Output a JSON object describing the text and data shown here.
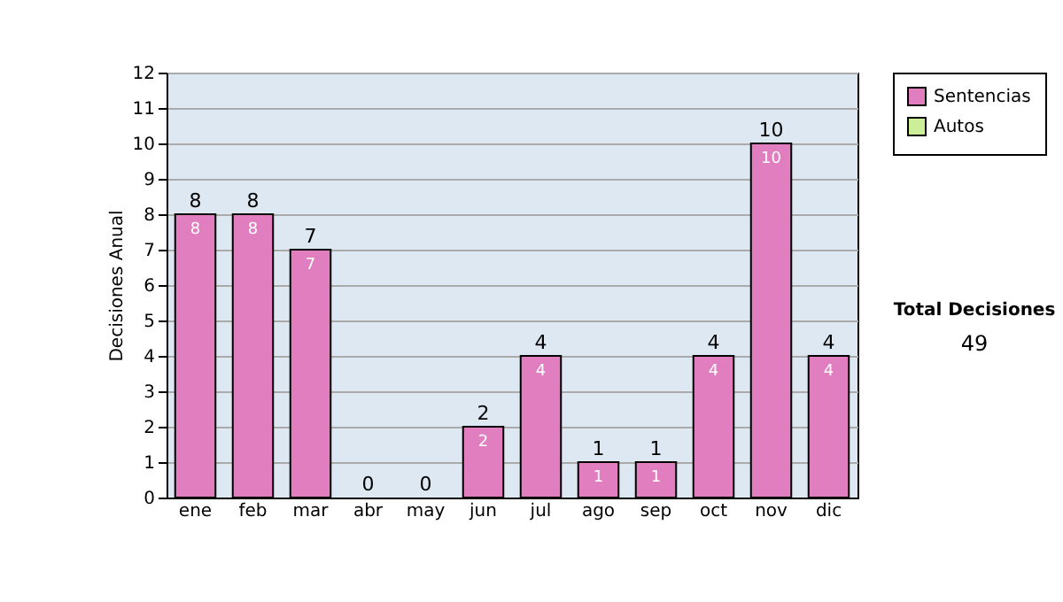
{
  "chart_data": {
    "type": "bar",
    "stacked": true,
    "ylabel": "Decisiones Anual",
    "categories": [
      "ene",
      "feb",
      "mar",
      "abr",
      "may",
      "jun",
      "jul",
      "ago",
      "sep",
      "oct",
      "nov",
      "dic"
    ],
    "series": [
      {
        "name": "Sentencias",
        "color": "#e07ec0",
        "values": [
          8,
          8,
          7,
          0,
          0,
          2,
          4,
          1,
          1,
          4,
          10,
          4
        ],
        "value_labels": [
          "8",
          "8",
          "7",
          null,
          null,
          "2",
          "4",
          "1",
          "1",
          "4",
          "10",
          "4"
        ]
      },
      {
        "name": "Autos",
        "color": "#ccee99",
        "values": [
          0,
          0,
          0,
          0,
          0,
          0,
          0,
          0,
          0,
          0,
          0,
          0
        ]
      }
    ],
    "totals": [
      "8",
      "8",
      "7",
      "0",
      "0",
      "2",
      "4",
      "1",
      "1",
      "4",
      "10",
      "4"
    ],
    "ylim": [
      0,
      12
    ],
    "yticks": [
      0,
      1,
      2,
      3,
      4,
      5,
      6,
      7,
      8,
      9,
      10,
      11,
      12
    ],
    "grid": "y",
    "legend": "right",
    "annotations": [
      "Total Decisiones",
      "49"
    ]
  }
}
